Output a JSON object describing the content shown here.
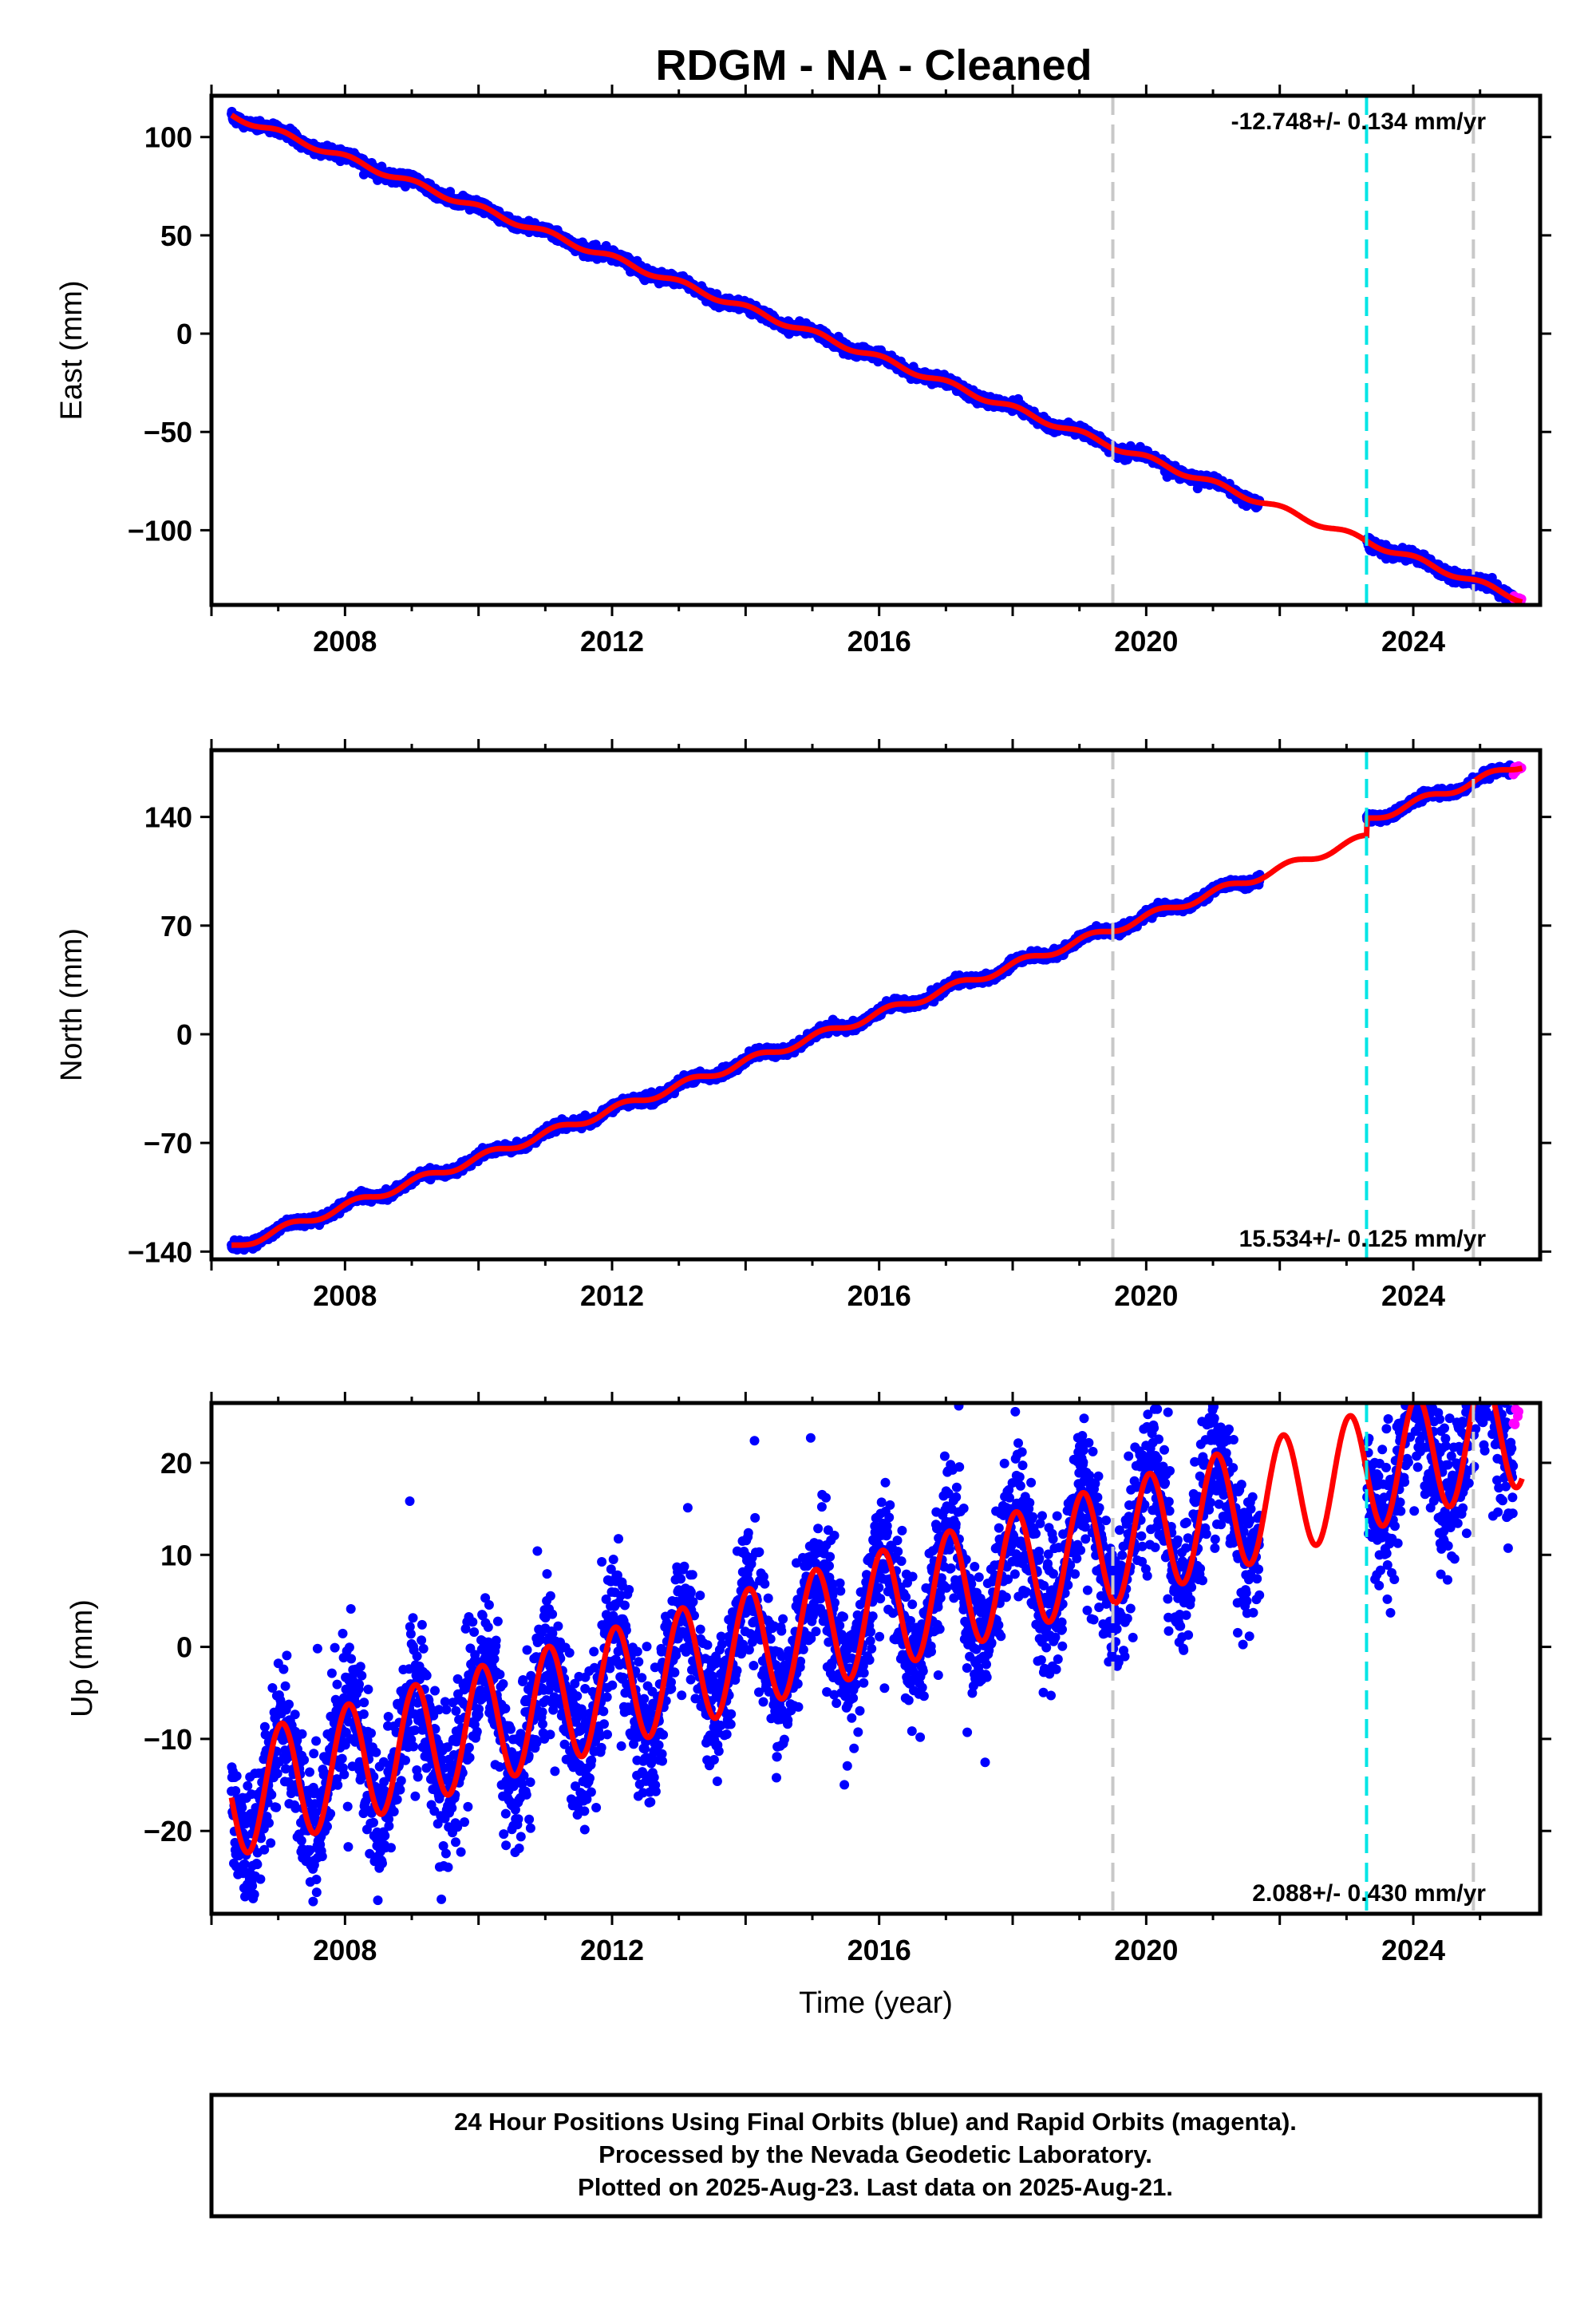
{
  "title": "RDGM  - NA - Cleaned",
  "footer": {
    "lines": [
      "24 Hour Positions Using Final Orbits (blue) and Rapid Orbits (magenta).",
      "Processed by the Nevada Geodetic Laboratory.",
      "Plotted on 2025-Aug-23. Last data on 2025-Aug-21."
    ]
  },
  "colors": {
    "final_orbits": "#0000ff",
    "rapid_orbits": "#ff00ff",
    "model_fit": "#ff0000",
    "equipment_change": "#c8c8c8",
    "earthquake_event": "#00e5e5"
  },
  "chart_data": [
    {
      "type": "scatter",
      "component": "East",
      "ylabel": "East (mm)",
      "xlabel": "",
      "xlim": [
        2006.0,
        2025.9
      ],
      "ylim": [
        -138,
        121
      ],
      "xticks": [
        2008,
        2012,
        2016,
        2020,
        2024
      ],
      "yticks": [
        100,
        50,
        0,
        -50,
        -100
      ],
      "rate_text": "-12.748+/- 0.134 mm/yr",
      "rate_position": "top-right",
      "model": {
        "intercept_2006": 115,
        "rate": -12.748,
        "amplitude": 1.5,
        "phase": 0.2
      },
      "final_orbits": {
        "start": 2006.3,
        "end": 2025.5,
        "gap": [
          2021.7,
          2023.3
        ],
        "noise": 1.3,
        "outlier_noise": 0
      },
      "rapid_orbits": {
        "start": 2025.5,
        "end": 2025.63
      },
      "offsets": []
    },
    {
      "type": "scatter",
      "component": "North",
      "ylabel": "North (mm)",
      "xlabel": "",
      "xlim": [
        2006.0,
        2025.9
      ],
      "ylim": [
        -145,
        183
      ],
      "xticks": [
        2008,
        2012,
        2016,
        2020,
        2024
      ],
      "yticks": [
        140,
        70,
        0,
        -70,
        -140
      ],
      "rate_text": "15.534+/- 0.125 mm/yr",
      "rate_position": "bottom-right",
      "model": {
        "intercept_2006": -142,
        "rate": 15.534,
        "amplitude": 2.5,
        "phase": 0.1
      },
      "final_orbits": {
        "start": 2006.3,
        "end": 2025.5,
        "gap": [
          2021.7,
          2023.3
        ],
        "noise": 1.4,
        "outlier_noise": 0
      },
      "rapid_orbits": {
        "start": 2025.5,
        "end": 2025.63
      },
      "offsets": [
        {
          "time": 2023.3,
          "value": 11
        }
      ]
    },
    {
      "type": "scatter",
      "component": "Up",
      "ylabel": "Up (mm)",
      "xlabel": "Time (year)",
      "xlim": [
        2006.0,
        2025.9
      ],
      "ylim": [
        -29,
        26.5
      ],
      "xticks": [
        2008,
        2012,
        2016,
        2020,
        2024
      ],
      "yticks": [
        20,
        10,
        0,
        -10,
        -20
      ],
      "rate_text": "2.088+/- 0.430 mm/yr",
      "rate_position": "bottom-right",
      "model": {
        "intercept_2006": -17,
        "rate": 2.088,
        "amplitude": 6.5,
        "phase": 0.2
      },
      "final_orbits": {
        "start": 2006.3,
        "end": 2025.5,
        "gap": [
          2021.7,
          2023.3
        ],
        "noise": 3.5,
        "outlier_noise": 6
      },
      "rapid_orbits": {
        "start": 2025.5,
        "end": 2025.63
      },
      "offsets": []
    }
  ],
  "vertical_markers": [
    {
      "time": 2019.5,
      "kind": "equipment_change"
    },
    {
      "time": 2023.3,
      "kind": "earthquake_event"
    },
    {
      "time": 2024.9,
      "kind": "equipment_change"
    }
  ]
}
